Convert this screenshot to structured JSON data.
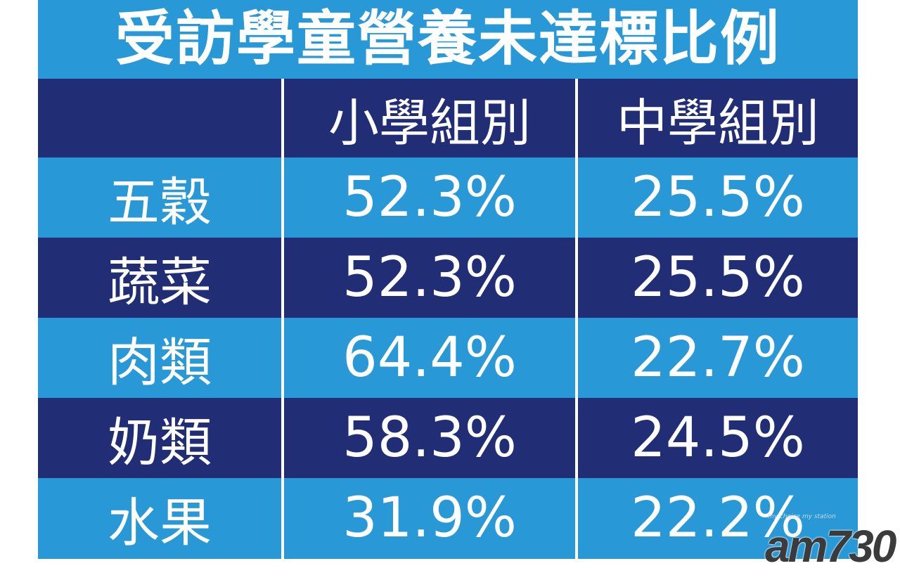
{
  "chart_data": {
    "type": "table",
    "title": "受訪學童營養未達標比例",
    "columns": [
      "",
      "小學組別",
      "中學組別"
    ],
    "rows": [
      {
        "label": "五穀",
        "values": [
          "52.3%",
          "25.5%"
        ]
      },
      {
        "label": "蔬菜",
        "values": [
          "52.3%",
          "25.5%"
        ]
      },
      {
        "label": "肉類",
        "values": [
          "64.4%",
          "22.7%"
        ]
      },
      {
        "label": "奶類",
        "values": [
          "58.3%",
          "24.5%"
        ]
      },
      {
        "label": "水果",
        "values": [
          "31.9%",
          "22.2%"
        ]
      }
    ]
  },
  "colors": {
    "light_band": "#2898d6",
    "dark_band": "#212d74",
    "text": "#ffffff"
  },
  "watermark": {
    "tagline": "my choice my station",
    "brand": "am730"
  }
}
